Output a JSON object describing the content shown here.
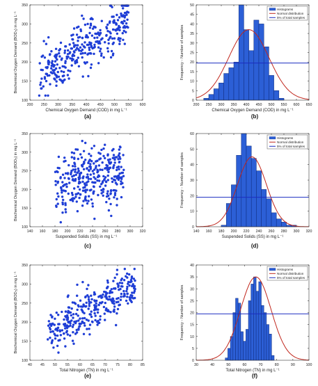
{
  "figure": {
    "panel_labels": [
      "(a)",
      "(b)",
      "(c)",
      "(d)",
      "(e)",
      "(f)"
    ]
  },
  "chart_data": [
    {
      "id": "a",
      "type": "scatter",
      "title": "",
      "xlabel": "Chemical Oxygen Demand (COD) in mg L⁻¹",
      "ylabel": "Biochemical Oxygen Demand (BOD₅) in mg L⁻¹",
      "xlim": [
        200,
        600
      ],
      "ylim": [
        100,
        350
      ],
      "xticks": [
        200,
        250,
        300,
        350,
        400,
        450,
        500,
        550,
        600
      ],
      "yticks": [
        100,
        150,
        200,
        250,
        300,
        350
      ],
      "marker_color": "#1f3ed6",
      "trend": {
        "x0": 230,
        "x1": 550,
        "y0": 160,
        "y1": 315,
        "spread": 32
      },
      "points_count": 340
    },
    {
      "id": "b",
      "type": "bar",
      "title": "",
      "xlabel": "Chemical Oxygen Demand (COD) in mg L⁻¹",
      "ylabel": "Frequency - Number of samples",
      "xlim": [
        200,
        650
      ],
      "ylim": [
        0,
        50
      ],
      "xticks": [
        200,
        250,
        300,
        350,
        400,
        450,
        500,
        550,
        600,
        650
      ],
      "yticks": [
        0,
        5,
        10,
        15,
        20,
        25,
        30,
        35,
        40,
        45,
        50
      ],
      "bin_start": 230,
      "bin_width": 20,
      "values": [
        1,
        3,
        6,
        9,
        14,
        17,
        20,
        50,
        37,
        26,
        42,
        40,
        28,
        13,
        5,
        1
      ],
      "normal": {
        "mean": 410,
        "sd": 80,
        "peak": 37
      },
      "threshold": 19.5,
      "legend": [
        "Histograms",
        "Normal distribution",
        "5% of total samples"
      ],
      "legend_position": "top-right",
      "colors": {
        "bar": "#2c5fd6",
        "edge": "#0f2b7a",
        "normal": "#c0261c",
        "threshold": "#1a2cc0"
      }
    },
    {
      "id": "c",
      "type": "scatter",
      "title": "",
      "xlabel": "Suspended Solids (SS) in mg L⁻¹",
      "ylabel": "Biochemical Oxygen Demand (BOD₅) in mg L⁻¹",
      "xlim": [
        140,
        320
      ],
      "ylim": [
        100,
        350
      ],
      "xticks": [
        140,
        160,
        180,
        200,
        220,
        240,
        260,
        280,
        300,
        320
      ],
      "yticks": [
        100,
        150,
        200,
        250,
        300,
        350
      ],
      "marker_color": "#1f3ed6",
      "trend": {
        "x0": 180,
        "x1": 290,
        "y0": 210,
        "y1": 250,
        "spread": 42
      },
      "points_count": 340
    },
    {
      "id": "d",
      "type": "bar",
      "title": "",
      "xlabel": "Suspended Solids (SS) in mg L⁻¹",
      "ylabel": "Frequency - Number of samples",
      "xlim": [
        140,
        320
      ],
      "ylim": [
        0,
        60
      ],
      "xticks": [
        140,
        160,
        180,
        200,
        220,
        240,
        260,
        280,
        300,
        320
      ],
      "yticks": [
        0,
        10,
        20,
        30,
        40,
        50,
        60
      ],
      "bin_start": 180,
      "bin_width": 8,
      "values": [
        1,
        15,
        27,
        46,
        60,
        52,
        44,
        36,
        24,
        18,
        9,
        5,
        3,
        1,
        1
      ],
      "normal": {
        "mean": 229,
        "sd": 23,
        "peak": 45
      },
      "threshold": 19,
      "legend": [
        "Histograms",
        "Normal distribution",
        "5% of total samples"
      ],
      "legend_position": "top-right",
      "colors": {
        "bar": "#2c5fd6",
        "edge": "#0f2b7a",
        "normal": "#c0261c",
        "threshold": "#1a2cc0"
      }
    },
    {
      "id": "e",
      "type": "scatter",
      "title": "",
      "xlabel": "Total Nitrogen (TN) in mg L⁻¹",
      "ylabel": "Biochemical Oxygen Demand (BOD₅) in mg L⁻¹",
      "xlim": [
        40,
        85
      ],
      "ylim": [
        100,
        350
      ],
      "xticks": [
        40,
        45,
        50,
        55,
        60,
        65,
        70,
        75,
        80,
        85
      ],
      "yticks": [
        100,
        150,
        200,
        250,
        300,
        350
      ],
      "marker_color": "#1f3ed6",
      "trend": {
        "x0": 47,
        "x1": 82,
        "y0": 170,
        "y1": 300,
        "spread": 28
      },
      "points_count": 340
    },
    {
      "id": "f",
      "type": "bar",
      "title": "",
      "xlabel": "Total Nitrogen (TN) in mg L⁻¹",
      "ylabel": "Frequency - Number of samples",
      "xlim": [
        30,
        100
      ],
      "ylim": [
        0,
        40
      ],
      "xticks": [
        30,
        40,
        50,
        60,
        70,
        80,
        90,
        100
      ],
      "yticks": [
        0,
        5,
        10,
        15,
        20,
        25,
        30,
        35,
        40
      ],
      "bin_start": 48,
      "bin_width": 1.6,
      "values": [
        1,
        5,
        10,
        20,
        26,
        24,
        12,
        8,
        13,
        25,
        32,
        35,
        29,
        33,
        23,
        20,
        15,
        11,
        2
      ],
      "normal": {
        "mean": 67,
        "sd": 9.5,
        "peak": 35
      },
      "threshold": 19.5,
      "legend": [
        "Histograms",
        "Normal distribution",
        "5% of total samples"
      ],
      "legend_position": "top-right",
      "colors": {
        "bar": "#2c5fd6",
        "edge": "#0f2b7a",
        "normal": "#c0261c",
        "threshold": "#1a2cc0"
      }
    }
  ]
}
